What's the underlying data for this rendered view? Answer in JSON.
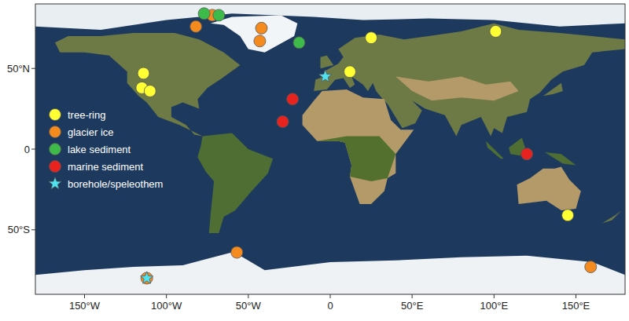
{
  "chart_data": {
    "type": "scatter",
    "xlim": [
      -180,
      180
    ],
    "ylim": [
      -90,
      90
    ],
    "xticks": [
      {
        "value": -150,
        "label": "150°W"
      },
      {
        "value": -100,
        "label": "100°W"
      },
      {
        "value": -50,
        "label": "50°W"
      },
      0,
      {
        "value": 50,
        "label": "50°E"
      },
      {
        "value": 100,
        "label": "100°E"
      },
      {
        "value": 150,
        "label": "150°E"
      }
    ],
    "yticks": [
      {
        "value": -50,
        "label": "50°S"
      },
      0,
      {
        "value": 50,
        "label": "50°N"
      }
    ],
    "legend": "center left",
    "series": [
      {
        "name": "tree-ring",
        "color": "#ffff33",
        "marker": "circle",
        "x": [
          -114,
          -115,
          -110,
          25,
          12,
          101,
          145
        ],
        "values": [
          47,
          38,
          36,
          69,
          48,
          73,
          -41
        ]
      },
      {
        "name": "glacier ice",
        "color": "#f58a1f",
        "marker": "circle",
        "x": [
          -82,
          -72,
          -42,
          -43,
          -57,
          159,
          -112
        ],
        "values": [
          76,
          83,
          75,
          67,
          -64,
          -73,
          -80
        ]
      },
      {
        "name": "lake sediment",
        "color": "#3dba4a",
        "marker": "circle",
        "x": [
          -77,
          -68,
          -19
        ],
        "values": [
          84,
          83,
          66
        ]
      },
      {
        "name": "marine sediment",
        "color": "#e8221f",
        "marker": "circle",
        "x": [
          -23,
          -29,
          120
        ],
        "values": [
          31,
          17,
          -3
        ]
      },
      {
        "name": "borehole/speleothem",
        "color": "#4de3f0",
        "marker": "star",
        "x": [
          -3,
          -112
        ],
        "values": [
          45,
          -80
        ]
      }
    ]
  }
}
